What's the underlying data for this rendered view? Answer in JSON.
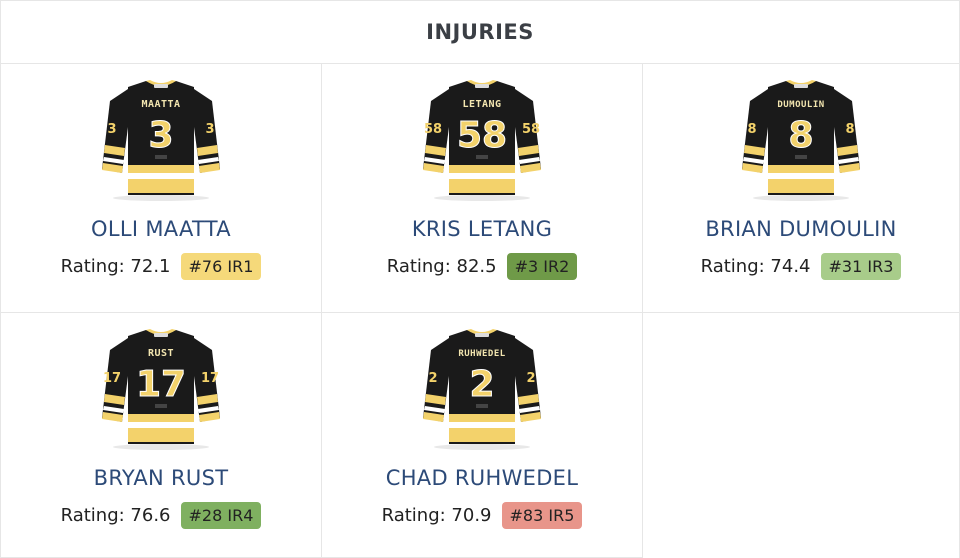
{
  "header": {
    "title": "INJURIES"
  },
  "colors": {
    "jersey_black": "#1a1a1a",
    "jersey_gold": "#f3d26b",
    "name_blue": "#2c4a78"
  },
  "players": [
    {
      "name": "OLLI MAATTA",
      "jersey_name": "MAATTA",
      "number": "3",
      "rating_text": "Rating: 72.1",
      "badge": "#76 IR1",
      "badge_color": "#f5d97a"
    },
    {
      "name": "KRIS LETANG",
      "jersey_name": "LETANG",
      "number": "58",
      "rating_text": "Rating: 82.5",
      "badge": "#3 IR2",
      "badge_color": "#6f9a48"
    },
    {
      "name": "BRIAN DUMOULIN",
      "jersey_name": "DUMOULIN",
      "number": "8",
      "rating_text": "Rating: 74.4",
      "badge": "#31 IR3",
      "badge_color": "#a8cc8a"
    },
    {
      "name": "BRYAN RUST",
      "jersey_name": "RUST",
      "number": "17",
      "rating_text": "Rating: 76.6",
      "badge": "#28 IR4",
      "badge_color": "#7fb060"
    },
    {
      "name": "CHAD RUHWEDEL",
      "jersey_name": "RUHWEDEL",
      "number": "2",
      "rating_text": "Rating: 70.9",
      "badge": "#83 IR5",
      "badge_color": "#e8958a"
    }
  ]
}
